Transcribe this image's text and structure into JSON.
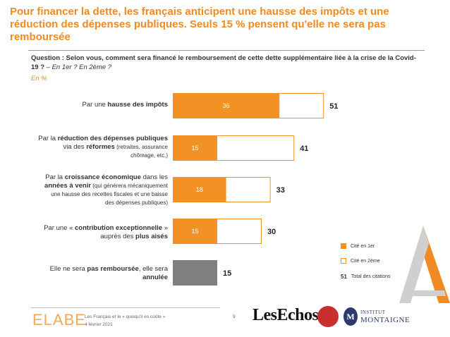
{
  "title": "Pour financer la dette, les français anticipent une hausse des impôts et une réduction des dépenses publiques. Seuls 15 % pensent qu'elle ne sera pas remboursée",
  "question": {
    "main": "Question : Selon vous, comment sera financé le remboursement de cette dette supplémentaire liée à la crise de la Covid-19 ?",
    "sub": " – En 1er ? En 2ème ?"
  },
  "unit_note": "En %",
  "labels": [
    {
      "pre": "Par une ",
      "bold": "hausse des impôts",
      "post": ""
    },
    {
      "line1_pre": "Par la ",
      "line1_bold": "réduction des dépenses publiques",
      "line2_pre": "via des ",
      "line2_bold": "réformes",
      "line2_small": " (retraites, assurance",
      "line3_small": "chômage, etc.)"
    },
    {
      "line1_pre": "Par la ",
      "line1_bold": "croissance économique",
      "line1_post": " dans les",
      "line2_bold": "années à venir",
      "line2_small": " (qui génèrera mécaniquement",
      "line3_small": "une hausse des recettes fiscales et une baisse",
      "line4_small": "des dépenses publiques)"
    },
    {
      "line1_pre": "Par une « ",
      "line1_bold": "contribution exceptionnelle",
      "line1_post": " »",
      "line2_pre": "auprès des ",
      "line2_bold": "plus aisés"
    },
    {
      "line1_pre": "Elle ne sera ",
      "line1_bold": "pas remboursée",
      "line1_post": ", elle sera",
      "line2_bold": "annulée"
    }
  ],
  "legend": {
    "first_label": "Cité en 1er",
    "second_label": "Cité en 2ème",
    "total_num": "51",
    "total_label": "Total des citations"
  },
  "footer": {
    "brand": "ELABE",
    "line1": "Les Français et le « quoiqu'il en coûte »",
    "line2": "4 février 2021",
    "page": "9",
    "partner1": "LesEchos",
    "partner3_line1": "INSTITUT",
    "partner3_line2": "MONTAIGNE"
  },
  "chart_data": {
    "type": "bar",
    "orientation": "horizontal",
    "stacked": true,
    "categories": [
      "Par une hausse des impôts",
      "Par la réduction des dépenses publiques via des réformes (retraites, assurance chômage, etc.)",
      "Par la croissance économique dans les années à venir (qui génèrera mécaniquement une hausse des recettes fiscales et une baisse des dépenses publiques)",
      "Par une « contribution exceptionnelle » auprès des plus aisés",
      "Elle ne sera pas remboursée, elle sera annulée"
    ],
    "series": [
      {
        "name": "Cité en 1er",
        "values": [
          36,
          15,
          18,
          15,
          15
        ]
      },
      {
        "name": "Cité en 2ème",
        "values": [
          15,
          26,
          15,
          15,
          null
        ]
      }
    ],
    "totals": [
      51,
      41,
      33,
      30,
      15
    ],
    "inner_labels": [
      "36",
      "15",
      "18",
      "15",
      null
    ],
    "colors": {
      "first": "#f39224",
      "second_border": "#f39224",
      "annulee": "#7f7f7f"
    }
  }
}
